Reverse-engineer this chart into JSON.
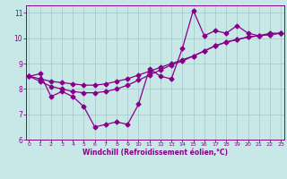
{
  "title": "",
  "xlabel": "Windchill (Refroidissement éolien,°C)",
  "ylabel": "",
  "background_color": "#c8e8e8",
  "grid_color": "#a8cccc",
  "line_color": "#880088",
  "xlim": [
    0,
    23
  ],
  "ylim": [
    6,
    11.3
  ],
  "yticks": [
    6,
    7,
    8,
    9,
    10,
    11
  ],
  "xticks": [
    0,
    1,
    2,
    3,
    4,
    5,
    6,
    7,
    8,
    9,
    10,
    11,
    12,
    13,
    14,
    15,
    16,
    17,
    18,
    19,
    20,
    21,
    22,
    23
  ],
  "series1": [
    8.5,
    8.6,
    7.7,
    7.9,
    7.7,
    7.3,
    6.5,
    6.6,
    6.7,
    6.6,
    7.4,
    8.8,
    8.5,
    8.4,
    9.6,
    11.1,
    10.1,
    10.3,
    10.2,
    10.5,
    10.2,
    10.1,
    10.2,
    10.2
  ],
  "series2": [
    8.5,
    8.4,
    8.3,
    8.25,
    8.2,
    8.15,
    8.15,
    8.2,
    8.3,
    8.4,
    8.55,
    8.7,
    8.85,
    9.0,
    9.15,
    9.3,
    9.5,
    9.7,
    9.85,
    9.95,
    10.05,
    10.1,
    10.15,
    10.2
  ],
  "series3": [
    8.5,
    8.3,
    8.1,
    8.0,
    7.9,
    7.85,
    7.85,
    7.9,
    8.0,
    8.15,
    8.35,
    8.55,
    8.75,
    8.95,
    9.1,
    9.3,
    9.5,
    9.7,
    9.85,
    9.95,
    10.05,
    10.1,
    10.15,
    10.2
  ]
}
